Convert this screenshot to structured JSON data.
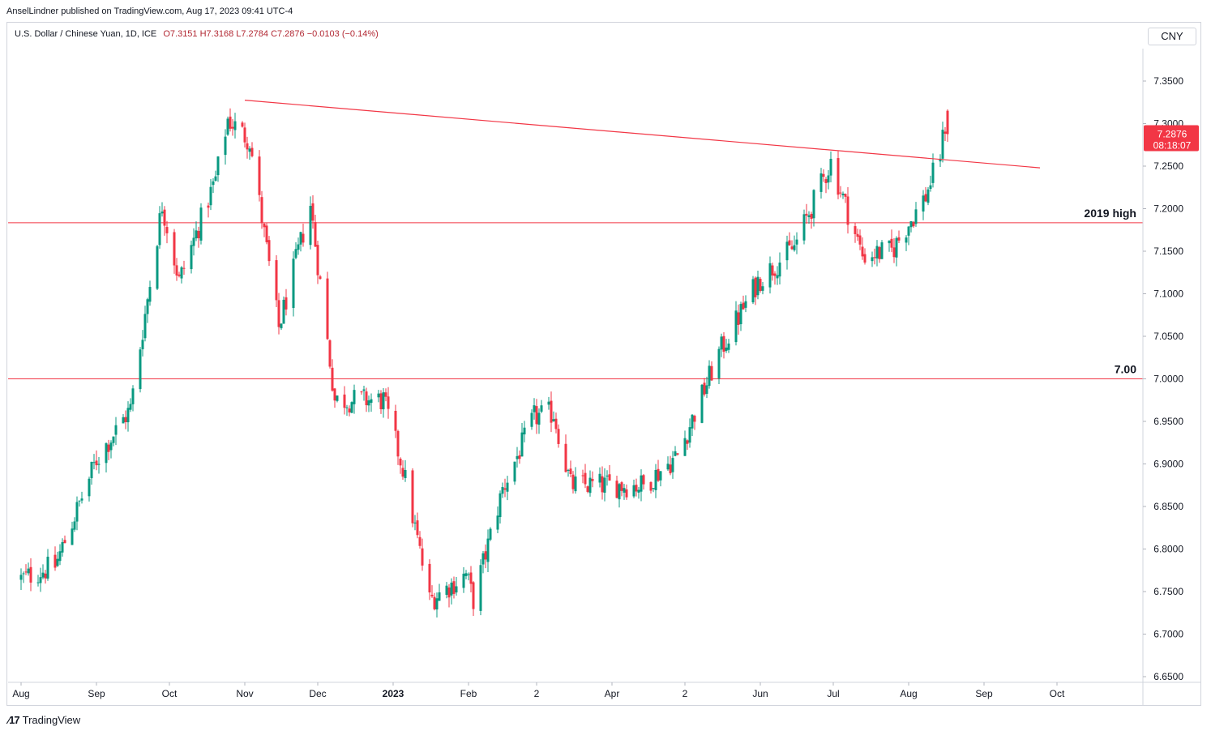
{
  "publisher_line": "AnselLindner published on TradingView.com, Aug 17, 2023 09:41 UTC-4",
  "legend": {
    "symbol": "U.S. Dollar / Chinese Yuan, 1D, ICE",
    "ohlc": "O7.3151  H7.3168  L7.2784  C7.2876  −0.0103 (−0.14%)"
  },
  "currency_button": "CNY",
  "price_label": {
    "value": "7.2876",
    "countdown": "08:18:07"
  },
  "footer_brand": "TradingView",
  "colors": {
    "up": "#089981",
    "down": "#f23645",
    "line": "#f23645",
    "label_bg": "#f23645"
  },
  "chart_data": {
    "type": "candlestick",
    "ylim": [
      6.64,
      7.39
    ],
    "y_ticks": [
      "7.3500",
      "7.3000",
      "7.2500",
      "7.2000",
      "7.1500",
      "7.1000",
      "7.0500",
      "7.0000",
      "6.9500",
      "6.9000",
      "6.8500",
      "6.8000",
      "6.7500",
      "6.7000",
      "6.6500"
    ],
    "x_ticks": [
      "Aug",
      "Sep",
      "Oct",
      "Nov",
      "Dec",
      "2023",
      "Feb",
      "2",
      "Apr",
      "2",
      "Jun",
      "Jul",
      "Aug",
      "Sep",
      "Oct"
    ],
    "horizontal_levels": [
      {
        "value": 7.1835,
        "label": "2019 high"
      },
      {
        "value": 7.0,
        "label": "7.00"
      }
    ],
    "trendline": {
      "start": {
        "date": "2022-11-01",
        "value": 7.3275
      },
      "end": {
        "date": "2023-09-24",
        "value": 7.248
      }
    },
    "series_keypoints": [
      {
        "date": "2022-08-01",
        "close": 6.765
      },
      {
        "date": "2022-08-15",
        "close": 6.78
      },
      {
        "date": "2022-09-01",
        "close": 6.905
      },
      {
        "date": "2022-09-15",
        "close": 6.965
      },
      {
        "date": "2022-09-28",
        "close": 7.205
      },
      {
        "date": "2022-10-05",
        "close": 7.115
      },
      {
        "date": "2022-10-20",
        "close": 7.235
      },
      {
        "date": "2022-10-25",
        "close": 7.305
      },
      {
        "date": "2022-11-03",
        "close": 7.28
      },
      {
        "date": "2022-11-15",
        "close": 7.06
      },
      {
        "date": "2022-11-28",
        "close": 7.205
      },
      {
        "date": "2022-12-08",
        "close": 6.975
      },
      {
        "date": "2022-12-28",
        "close": 6.975
      },
      {
        "date": "2023-01-05",
        "close": 6.895
      },
      {
        "date": "2023-01-16",
        "close": 6.74
      },
      {
        "date": "2023-01-31",
        "close": 6.77
      },
      {
        "date": "2023-02-03",
        "close": 6.74
      },
      {
        "date": "2023-02-15",
        "close": 6.87
      },
      {
        "date": "2023-02-28",
        "close": 6.955
      },
      {
        "date": "2023-03-08",
        "close": 6.96
      },
      {
        "date": "2023-03-15",
        "close": 6.875
      },
      {
        "date": "2023-03-31",
        "close": 6.875
      },
      {
        "date": "2023-04-14",
        "close": 6.875
      },
      {
        "date": "2023-04-28",
        "close": 6.91
      },
      {
        "date": "2023-05-15",
        "close": 7.03
      },
      {
        "date": "2023-05-31",
        "close": 7.115
      },
      {
        "date": "2023-06-15",
        "close": 7.155
      },
      {
        "date": "2023-06-30",
        "close": 7.255
      },
      {
        "date": "2023-07-13",
        "close": 7.145
      },
      {
        "date": "2023-07-25",
        "close": 7.15
      },
      {
        "date": "2023-08-08",
        "close": 7.215
      },
      {
        "date": "2023-08-14",
        "close": 7.265
      },
      {
        "date": "2023-08-16",
        "close": 7.2979
      },
      {
        "date": "2023-08-17",
        "open": 7.3151,
        "high": 7.3168,
        "low": 7.2784,
        "close": 7.2876
      }
    ]
  }
}
